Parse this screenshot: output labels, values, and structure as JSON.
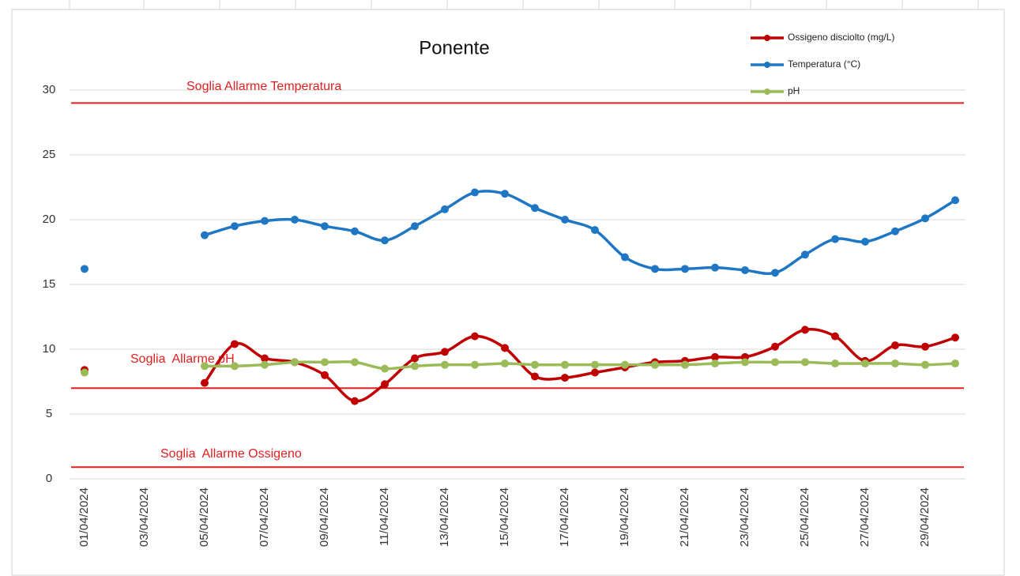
{
  "chart_data": {
    "type": "line",
    "title": "Ponente",
    "categories": [
      "01/04/2024",
      null,
      "03/04/2024",
      null,
      "05/04/2024",
      null,
      "07/04/2024",
      null,
      "09/04/2024",
      null,
      "11/04/2024",
      null,
      "13/04/2024",
      null,
      "15/04/2024",
      null,
      "17/04/2024",
      null,
      "19/04/2024",
      null,
      "21/04/2024",
      null,
      "23/04/2024",
      null,
      "25/04/2024",
      null,
      "27/04/2024",
      null,
      "29/04/2024",
      null
    ],
    "series": [
      {
        "name": "Ossigeno disciolto (mg/L)",
        "color": "#c00000",
        "values": [
          8.4,
          null,
          null,
          null,
          7.4,
          10.4,
          9.3,
          9.0,
          8.0,
          6.0,
          7.3,
          9.3,
          9.8,
          11.0,
          10.1,
          7.9,
          7.8,
          8.2,
          8.6,
          9.0,
          9.1,
          9.4,
          9.4,
          10.2,
          11.5,
          11.0,
          9.1,
          10.3,
          10.2,
          10.9
        ]
      },
      {
        "name": "Temperatura (°C)",
        "color": "#1f77c4",
        "values": [
          16.2,
          null,
          null,
          null,
          18.8,
          19.5,
          19.9,
          20.0,
          19.5,
          19.1,
          18.4,
          19.5,
          20.8,
          22.1,
          22.0,
          20.9,
          20.0,
          19.2,
          17.1,
          16.2,
          16.2,
          16.3,
          16.1,
          15.9,
          17.3,
          18.5,
          18.3,
          19.1,
          20.1,
          21.5
        ]
      },
      {
        "name": "pH",
        "color": "#9bbb59",
        "values": [
          8.2,
          null,
          null,
          null,
          8.7,
          8.7,
          8.8,
          9.0,
          9.0,
          9.0,
          8.5,
          8.7,
          8.8,
          8.8,
          8.9,
          8.8,
          8.8,
          8.8,
          8.8,
          8.8,
          8.8,
          8.9,
          9.0,
          9.0,
          9.0,
          8.9,
          8.9,
          8.9,
          8.8,
          8.9
        ]
      }
    ],
    "thresholds": [
      {
        "label": "Soglia Allarme Temperatura",
        "value": 29,
        "color": "#e02020"
      },
      {
        "label": "Soglia  Allarme pH",
        "value": 7,
        "color": "#e02020"
      },
      {
        "label": "Soglia  Allarme Ossigeno",
        "value": 0.9,
        "color": "#e02020"
      }
    ],
    "ylim": [
      0,
      30
    ],
    "yticks": [
      0,
      5,
      10,
      15,
      20,
      25,
      30
    ],
    "grid": true,
    "legend": "top-right"
  }
}
